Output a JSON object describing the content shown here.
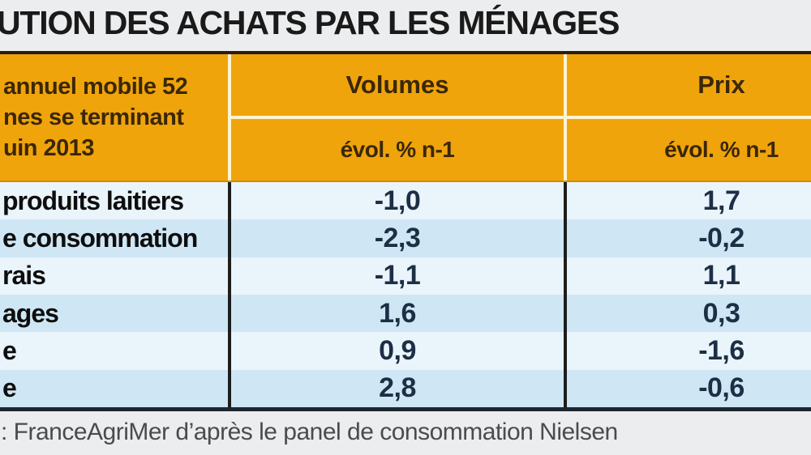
{
  "title": "UTION DES ACHATS PAR LES MÉNAGES",
  "table": {
    "corner": [
      "annuel mobile 52",
      "nes se terminant",
      "uin 2013"
    ],
    "groups": [
      {
        "label": "Volumes",
        "sub": "évol. % n-1"
      },
      {
        "label": "Prix",
        "sub": "évol. % n-1"
      }
    ],
    "rows": [
      {
        "label": "produits laitiers",
        "volumes": "-1,0",
        "prix": "1,7"
      },
      {
        "label": "e consommation",
        "volumes": "-2,3",
        "prix": "-0,2"
      },
      {
        "label": "rais",
        "volumes": "-1,1",
        "prix": "1,1"
      },
      {
        "label": "ages",
        "volumes": "1,6",
        "prix": "0,3"
      },
      {
        "label": "e",
        "volumes": "0,9",
        "prix": "-1,6"
      },
      {
        "label": "e",
        "volumes": "2,8",
        "prix": "-0,6"
      }
    ]
  },
  "source": ": FranceAgriMer d’après le panel de consommation Nielsen",
  "colors": {
    "header_orange": "#f0a40b",
    "header_text": "#3a2705",
    "row_light": "#eaf4fb",
    "row_alt": "#cfe7f4",
    "value_text": "#1d2f45",
    "separator_cream": "#fdf4d2",
    "separator_dark": "#1d1d1d",
    "top_border": "#2c1d0e",
    "background": "#ecedee"
  },
  "chart_data": {
    "type": "table",
    "title": "UTION DES ACHATS PAR LES MÉNAGES",
    "period_header_visible": "annuel mobile 52 / nes se terminant / uin 2013",
    "columns": [
      "Volumes évol. % n-1",
      "Prix évol. % n-1"
    ],
    "rows": [
      {
        "label": "produits laitiers",
        "volumes_evol_pct": -1.0,
        "prix_evol_pct": 1.7
      },
      {
        "label": "e consommation",
        "volumes_evol_pct": -2.3,
        "prix_evol_pct": -0.2
      },
      {
        "label": "rais",
        "volumes_evol_pct": -1.1,
        "prix_evol_pct": 1.1
      },
      {
        "label": "ages",
        "volumes_evol_pct": 1.6,
        "prix_evol_pct": 0.3
      },
      {
        "label": "e",
        "volumes_evol_pct": 0.9,
        "prix_evol_pct": -1.6
      },
      {
        "label": "e",
        "volumes_evol_pct": 2.8,
        "prix_evol_pct": -0.6
      }
    ],
    "source": ": FranceAgriMer d’après le panel de consommation Nielsen"
  }
}
